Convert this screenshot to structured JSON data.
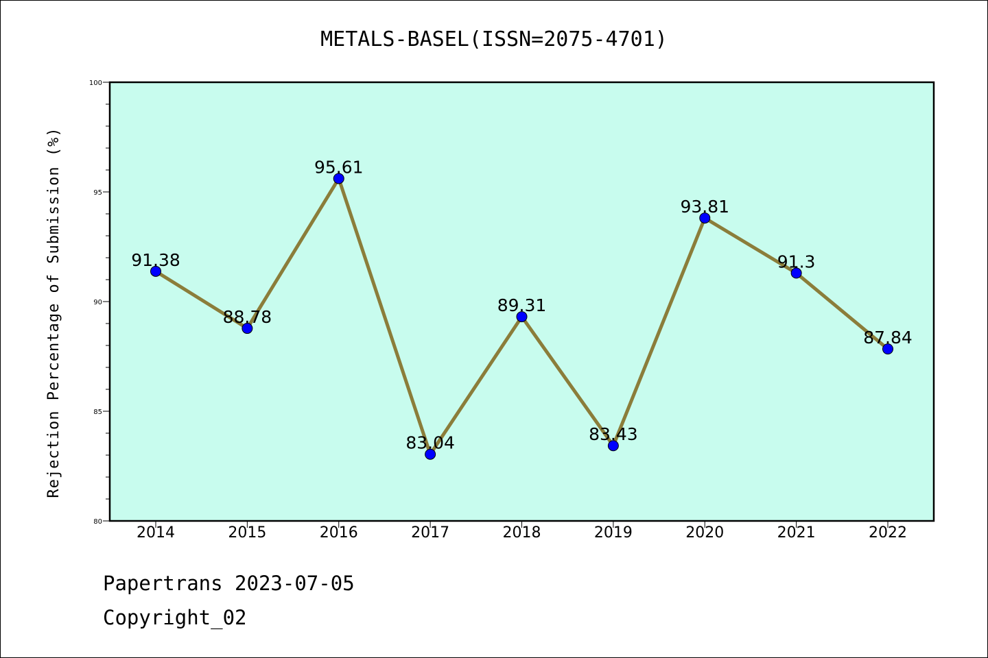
{
  "chart_data": {
    "type": "line",
    "title": "METALS-BASEL(ISSN=2075-4701)",
    "ylabel": "Rejection Percentage of Submission (%)",
    "xlabel": "",
    "categories": [
      "2014",
      "2015",
      "2016",
      "2017",
      "2018",
      "2019",
      "2020",
      "2021",
      "2022"
    ],
    "values": [
      91.38,
      88.78,
      95.61,
      83.04,
      89.31,
      83.43,
      93.81,
      91.3,
      87.84
    ],
    "data_labels": [
      "91.38",
      "88.78",
      "95.61",
      "83.04",
      "89.31",
      "83.43",
      "93.81",
      "91.3",
      "87.84"
    ],
    "ylim": [
      80,
      100
    ],
    "yticks": [
      "80",
      "85",
      "90",
      "95",
      "100"
    ],
    "grid": false,
    "line_color": "#8b7d3a",
    "marker_color": "#0000ff",
    "plot_background": "#c8fcee"
  },
  "footer": {
    "line1": "Papertrans 2023-07-05",
    "line2": "Copyright_02"
  }
}
